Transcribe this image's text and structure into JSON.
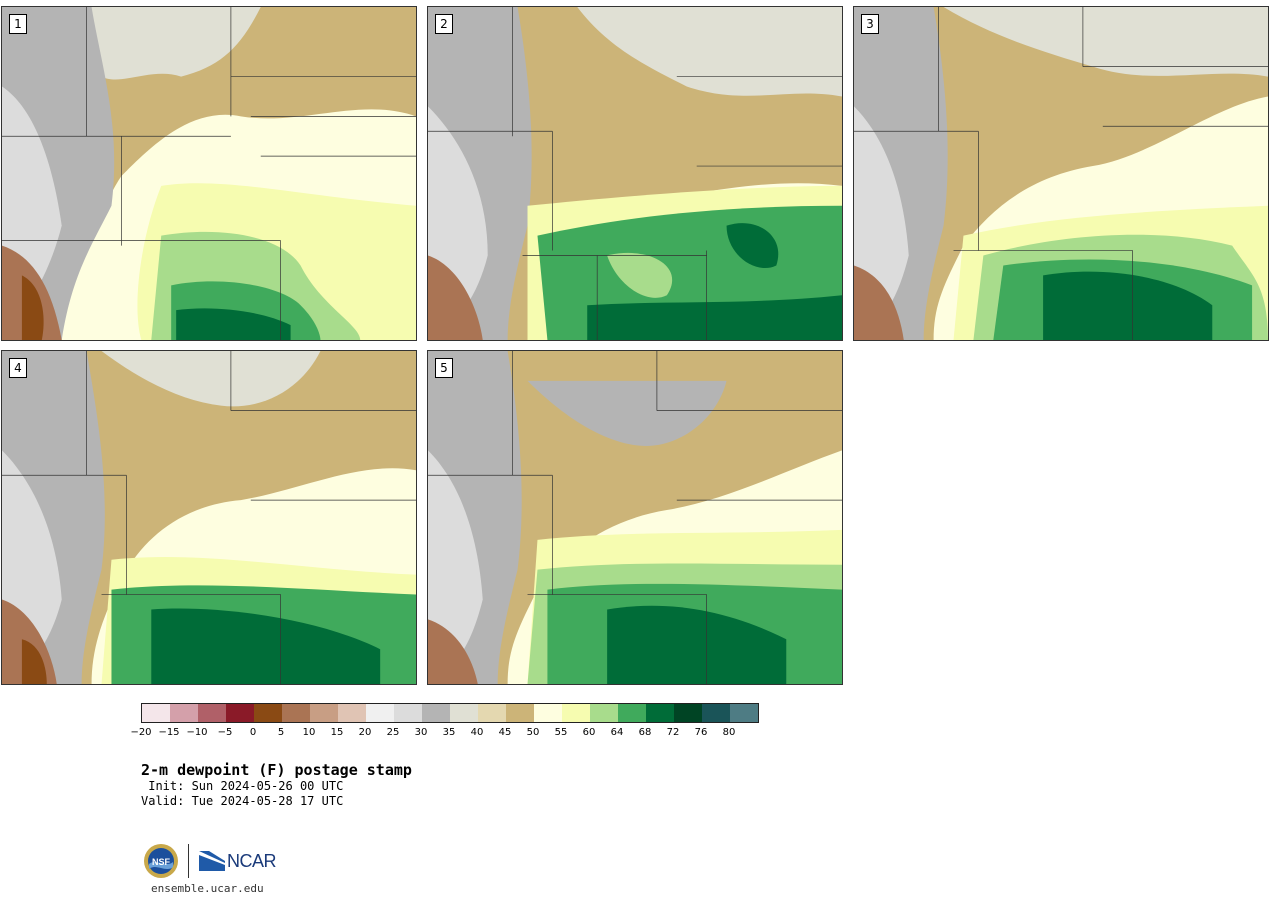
{
  "panels": [
    {
      "label": "1"
    },
    {
      "label": "2"
    },
    {
      "label": "3"
    },
    {
      "label": "4"
    },
    {
      "label": "5"
    }
  ],
  "colorbar": {
    "colors": [
      "#f4e6ea",
      "#d4a0aa",
      "#b06068",
      "#8a1a28",
      "#8a4a14",
      "#aa7454",
      "#c89e84",
      "#e0c4b4",
      "#f0f0f0",
      "#dcdcdc",
      "#b4b4b4",
      "#e0e0d4",
      "#e4d8b0",
      "#ccb478",
      "#fefee0",
      "#f6fcb0",
      "#a8dc8c",
      "#40aa5c",
      "#006c38",
      "#004424",
      "#1a5458",
      "#4e7c84"
    ],
    "ticks": [
      "−20",
      "−15",
      "−10",
      "−5",
      "0",
      "5",
      "10",
      "15",
      "20",
      "25",
      "30",
      "35",
      "40",
      "45",
      "50",
      "55",
      "60",
      "64",
      "68",
      "72",
      "76",
      "80"
    ]
  },
  "title": "2-m dewpoint (F) postage stamp",
  "init": " Init: Sun 2024-05-26 00 UTC",
  "valid": "Valid: Tue 2024-05-28 17 UTC",
  "logos": {
    "nsf": "NSF",
    "ncar": "NCAR"
  },
  "url": "ensemble.ucar.edu"
}
